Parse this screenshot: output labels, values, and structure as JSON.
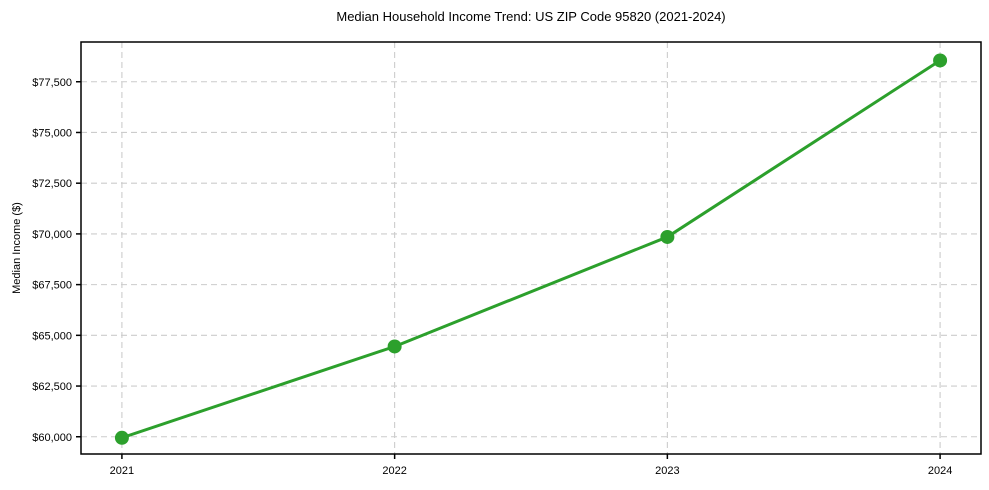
{
  "chart_data": {
    "type": "line",
    "title": "Median Household Income Trend: US ZIP Code 95820 (2021-2024)",
    "xlabel": "",
    "ylabel": "Median Income ($)",
    "x": [
      2021,
      2022,
      2023,
      2024
    ],
    "x_tick_labels": [
      "2021",
      "2022",
      "2023",
      "2024"
    ],
    "values": [
      59950,
      64450,
      69850,
      78550
    ],
    "y_ticks": [
      60000,
      62500,
      65000,
      67500,
      70000,
      72500,
      75000,
      77500
    ],
    "y_tick_labels": [
      "$60,000",
      "$62,500",
      "$65,000",
      "$67,500",
      "$70,000",
      "$72,500",
      "$75,000",
      "$77,500"
    ],
    "xlim": [
      2020.85,
      2024.15
    ],
    "ylim": [
      59150,
      79460
    ],
    "grid": true,
    "grid_style": "dashed",
    "legend_position": "none",
    "line_color": "#2ca02c",
    "marker": "circle",
    "marker_radius": 7,
    "line_width": 3,
    "grid_color": "#cccccc",
    "axis_color": "#000000",
    "background_color": "#ffffff"
  }
}
